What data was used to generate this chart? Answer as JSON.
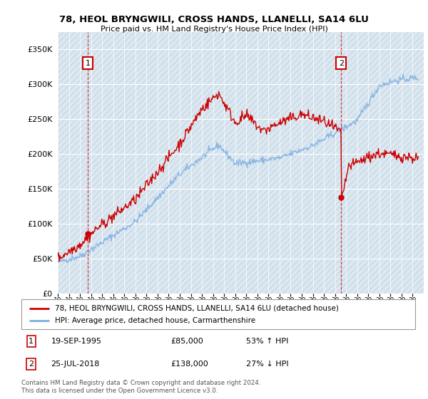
{
  "title": "78, HEOL BRYNGWILI, CROSS HANDS, LLANELLI, SA14 6LU",
  "subtitle": "Price paid vs. HM Land Registry's House Price Index (HPI)",
  "legend_line1": "78, HEOL BRYNGWILI, CROSS HANDS, LLANELLI, SA14 6LU (detached house)",
  "legend_line2": "HPI: Average price, detached house, Carmarthenshire",
  "annotation1_date": "19-SEP-1995",
  "annotation1_price": "£85,000",
  "annotation1_hpi": "53% ↑ HPI",
  "annotation2_date": "25-JUL-2018",
  "annotation2_price": "£138,000",
  "annotation2_hpi": "27% ↓ HPI",
  "copyright": "Contains HM Land Registry data © Crown copyright and database right 2024.\nThis data is licensed under the Open Government Licence v3.0.",
  "price_color": "#cc0000",
  "hpi_color": "#7aade0",
  "plot_bg_color": "#dce8f0",
  "hatch_color": "#c8d8e8",
  "ylim": [
    0,
    375000
  ],
  "yticks": [
    0,
    50000,
    100000,
    150000,
    200000,
    250000,
    300000,
    350000
  ],
  "sale1_x": 1995.72,
  "sale1_y": 85000,
  "sale2_x": 2018.56,
  "sale2_y": 138000,
  "xmin": 1993,
  "xmax": 2026
}
